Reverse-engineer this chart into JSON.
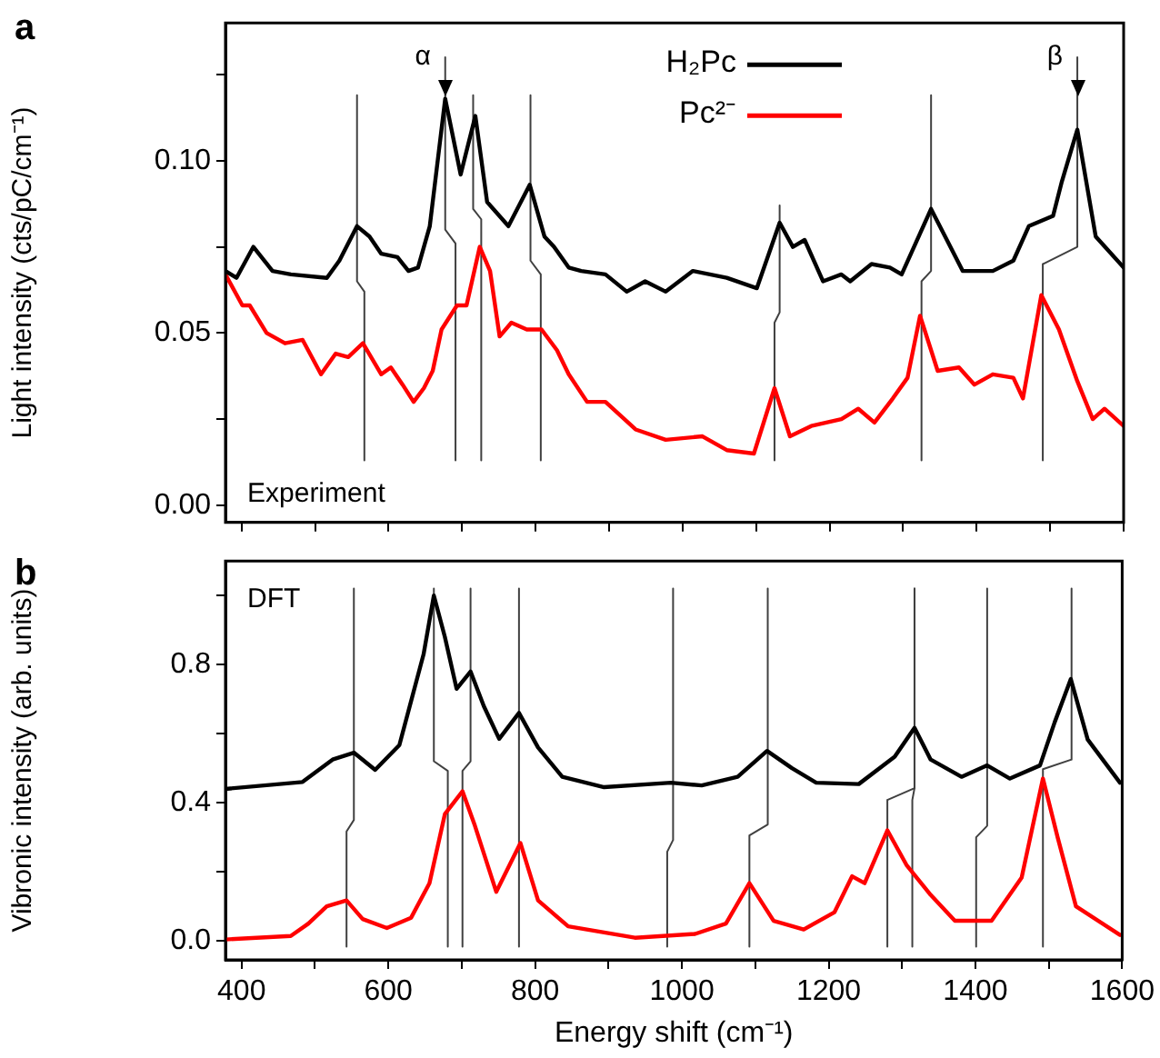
{
  "chart_data": [
    {
      "type": "line",
      "title": "a",
      "ylabel": "Light intensity (cts/pC/cm⁻¹)",
      "xlim": [
        378,
        1600
      ],
      "ylim": [
        -0.005,
        0.14
      ],
      "tick_labels": "y",
      "legend": "top",
      "xticks": [
        {
          "value": 400,
          "label": null
        },
        {
          "value": 500,
          "label": null
        },
        {
          "value": 600,
          "label": null
        },
        {
          "value": 700,
          "label": null
        },
        {
          "value": 800,
          "label": null
        },
        {
          "value": 900,
          "label": null
        },
        {
          "value": 1000,
          "label": null
        },
        {
          "value": 1100,
          "label": null
        },
        {
          "value": 1200,
          "label": null
        },
        {
          "value": 1300,
          "label": null
        },
        {
          "value": 1400,
          "label": null
        },
        {
          "value": 1500,
          "label": null
        },
        {
          "value": 1600,
          "label": null
        }
      ],
      "yticks": [
        {
          "value": 0,
          "label": "0.00"
        },
        {
          "value": 0.025,
          "label": null
        },
        {
          "value": 0.05,
          "label": "0.05"
        },
        {
          "value": 0.075,
          "label": null
        },
        {
          "value": 0.1,
          "label": "0.10"
        },
        {
          "value": 0.125,
          "label": null
        }
      ],
      "annotations": [
        {
          "text": "α",
          "x": 677,
          "y": 0.13
        },
        {
          "text": "β",
          "x": 1537,
          "y": 0.13
        },
        "Experiment"
      ],
      "series": [
        {
          "name": "H₂Pc",
          "color": "#000000",
          "x": [
            378,
            393,
            416,
            442,
            467,
            516,
            533,
            557,
            574,
            590,
            612,
            627,
            640,
            656,
            677,
            698,
            718,
            734,
            763,
            792,
            812,
            825,
            845,
            862,
            895,
            924,
            949,
            977,
            1014,
            1060,
            1101,
            1132,
            1150,
            1166,
            1191,
            1216,
            1228,
            1257,
            1282,
            1298,
            1338,
            1381,
            1422,
            1450,
            1471,
            1504,
            1516,
            1537,
            1562,
            1600
          ],
          "values": [
            0.068,
            0.066,
            0.075,
            0.068,
            0.067,
            0.066,
            0.071,
            0.081,
            0.078,
            0.073,
            0.072,
            0.068,
            0.069,
            0.081,
            0.118,
            0.096,
            0.113,
            0.088,
            0.081,
            0.093,
            0.078,
            0.075,
            0.069,
            0.068,
            0.067,
            0.062,
            0.065,
            0.062,
            0.068,
            0.066,
            0.063,
            0.082,
            0.075,
            0.077,
            0.065,
            0.067,
            0.065,
            0.07,
            0.069,
            0.067,
            0.086,
            0.068,
            0.068,
            0.071,
            0.081,
            0.084,
            0.094,
            0.109,
            0.078,
            0.069
          ]
        },
        {
          "name": "Pc²⁻",
          "color": "#ff0000",
          "x": [
            378,
            401,
            411,
            434,
            459,
            483,
            508,
            528,
            545,
            565,
            590,
            603,
            619,
            634,
            648,
            660,
            672,
            693,
            706,
            724,
            738,
            751,
            767,
            788,
            808,
            829,
            845,
            870,
            895,
            936,
            977,
            1027,
            1060,
            1097,
            1125,
            1146,
            1175,
            1216,
            1239,
            1261,
            1286,
            1306,
            1323,
            1347,
            1376,
            1397,
            1422,
            1450,
            1463,
            1488,
            1512,
            1537,
            1558,
            1574,
            1600
          ],
          "values": [
            0.067,
            0.058,
            0.058,
            0.05,
            0.047,
            0.048,
            0.038,
            0.044,
            0.043,
            0.047,
            0.038,
            0.04,
            0.035,
            0.03,
            0.034,
            0.039,
            0.051,
            0.058,
            0.058,
            0.075,
            0.068,
            0.049,
            0.053,
            0.051,
            0.051,
            0.045,
            0.038,
            0.03,
            0.03,
            0.022,
            0.019,
            0.02,
            0.016,
            0.015,
            0.034,
            0.02,
            0.023,
            0.025,
            0.028,
            0.024,
            0.031,
            0.037,
            0.055,
            0.039,
            0.04,
            0.035,
            0.038,
            0.037,
            0.031,
            0.061,
            0.051,
            0.036,
            0.025,
            0.028,
            0.023
          ]
        },
        {
          "color": "#404040",
          "x": [
            557,
            557,
            567,
            567
          ],
          "values": [
            0.119,
            0.065,
            0.062,
            0.013
          ]
        },
        {
          "color": "#404040",
          "x": [
            677,
            677,
            691,
            691
          ],
          "values": [
            0.13,
            0.08,
            0.076,
            0.013
          ]
        },
        {
          "color": "#404040",
          "x": [
            715,
            715,
            726,
            726
          ],
          "values": [
            0.119,
            0.086,
            0.083,
            0.013
          ]
        },
        {
          "color": "#404040",
          "x": [
            793,
            793,
            807,
            807
          ],
          "values": [
            0.119,
            0.071,
            0.067,
            0.013
          ]
        },
        {
          "color": "#404040",
          "x": [
            1132,
            1132,
            1125,
            1125
          ],
          "values": [
            0.087,
            0.056,
            0.053,
            0.013
          ]
        },
        {
          "color": "#404040",
          "x": [
            1338,
            1338,
            1325,
            1325
          ],
          "values": [
            0.119,
            0.068,
            0.065,
            0.013
          ]
        },
        {
          "color": "#404040",
          "x": [
            1537,
            1537,
            1490,
            1490
          ],
          "values": [
            0.13,
            0.075,
            0.07,
            0.013
          ]
        }
      ]
    },
    {
      "type": "line",
      "title": "b",
      "xlabel": "Energy shift (cm⁻¹)",
      "ylabel": "Vibronic intensity (arb. units)",
      "xlim": [
        378,
        1600
      ],
      "ylim": [
        -0.055,
        1.1
      ],
      "xticks": [
        400,
        {
          "value": 500,
          "label": null
        },
        600,
        {
          "value": 700,
          "label": null
        },
        800,
        {
          "value": 900,
          "label": null
        },
        1000,
        {
          "value": 1100,
          "label": null
        },
        1200,
        {
          "value": 1300,
          "label": null
        },
        1400,
        {
          "value": 1500,
          "label": null
        },
        1600
      ],
      "yticks": [
        {
          "value": 0,
          "label": "0.0"
        },
        {
          "value": 0.2,
          "label": null
        },
        {
          "value": 0.4,
          "label": "0.4"
        },
        {
          "value": 0.6,
          "label": null
        },
        {
          "value": 0.8,
          "label": "0.8"
        },
        {
          "value": 1.0,
          "label": null
        }
      ],
      "annotations": [
        "DFT"
      ],
      "series": [
        {
          "color": "#000000",
          "x": [
            378,
            483,
            524,
            553,
            582,
            615,
            648,
            662,
            677,
            693,
            712,
            730,
            751,
            778,
            804,
            837,
            894,
            985,
            1027,
            1076,
            1116,
            1150,
            1183,
            1241,
            1290,
            1317,
            1339,
            1381,
            1416,
            1447,
            1488,
            1508,
            1530,
            1553,
            1597
          ],
          "values": [
            0.44,
            0.46,
            0.525,
            0.545,
            0.495,
            0.567,
            0.83,
            1.0,
            0.88,
            0.73,
            0.78,
            0.68,
            0.585,
            0.66,
            0.56,
            0.475,
            0.445,
            0.458,
            0.45,
            0.475,
            0.55,
            0.5,
            0.458,
            0.454,
            0.533,
            0.617,
            0.525,
            0.475,
            0.508,
            0.47,
            0.508,
            0.633,
            0.758,
            0.583,
            0.458
          ]
        },
        {
          "color": "#ff0000",
          "x": [
            378,
            467,
            491,
            516,
            543,
            565,
            598,
            631,
            656,
            677,
            701,
            718,
            747,
            780,
            804,
            845,
            936,
            1018,
            1060,
            1092,
            1125,
            1166,
            1208,
            1232,
            1249,
            1280,
            1306,
            1339,
            1372,
            1422,
            1463,
            1492,
            1512,
            1537,
            1597
          ],
          "values": [
            0.004,
            0.014,
            0.05,
            0.1,
            0.117,
            0.063,
            0.037,
            0.067,
            0.167,
            0.367,
            0.433,
            0.333,
            0.142,
            0.283,
            0.117,
            0.042,
            0.009,
            0.02,
            0.05,
            0.167,
            0.058,
            0.033,
            0.083,
            0.187,
            0.167,
            0.32,
            0.22,
            0.133,
            0.058,
            0.058,
            0.183,
            0.47,
            0.3,
            0.1,
            0.017
          ]
        },
        {
          "color": "#404040",
          "x": [
            553,
            553,
            543,
            543
          ],
          "values": [
            1.02,
            0.35,
            0.317,
            -0.017
          ]
        },
        {
          "color": "#404040",
          "x": [
            662,
            662,
            681,
            681
          ],
          "values": [
            1.02,
            0.52,
            0.492,
            -0.017
          ]
        },
        {
          "color": "#404040",
          "x": [
            712,
            712,
            701,
            701
          ],
          "values": [
            1.02,
            0.52,
            0.492,
            -0.017
          ]
        },
        {
          "color": "#404040",
          "x": [
            778,
            778
          ],
          "values": [
            1.02,
            -0.017
          ]
        },
        {
          "color": "#404040",
          "x": [
            988,
            988,
            980,
            980
          ],
          "values": [
            1.02,
            0.292,
            0.258,
            -0.017
          ]
        },
        {
          "color": "#404040",
          "x": [
            1117,
            1117,
            1092,
            1092
          ],
          "values": [
            1.02,
            0.337,
            0.305,
            -0.017
          ]
        },
        {
          "color": "#404040",
          "x": [
            1317,
            1317,
            1280,
            1280
          ],
          "values": [
            1.02,
            0.442,
            0.408,
            -0.017
          ]
        },
        {
          "color": "#404040",
          "x": [
            1317,
            1317,
            1314,
            1314
          ],
          "values": [
            1.02,
            0.442,
            0.408,
            -0.017
          ]
        },
        {
          "color": "#404040",
          "x": [
            1416,
            1416,
            1401,
            1401
          ],
          "values": [
            1.02,
            0.333,
            0.3,
            -0.017
          ]
        },
        {
          "color": "#404040",
          "x": [
            1531,
            1531,
            1492,
            1492
          ],
          "values": [
            1.02,
            0.525,
            0.497,
            -0.017
          ]
        }
      ]
    }
  ]
}
